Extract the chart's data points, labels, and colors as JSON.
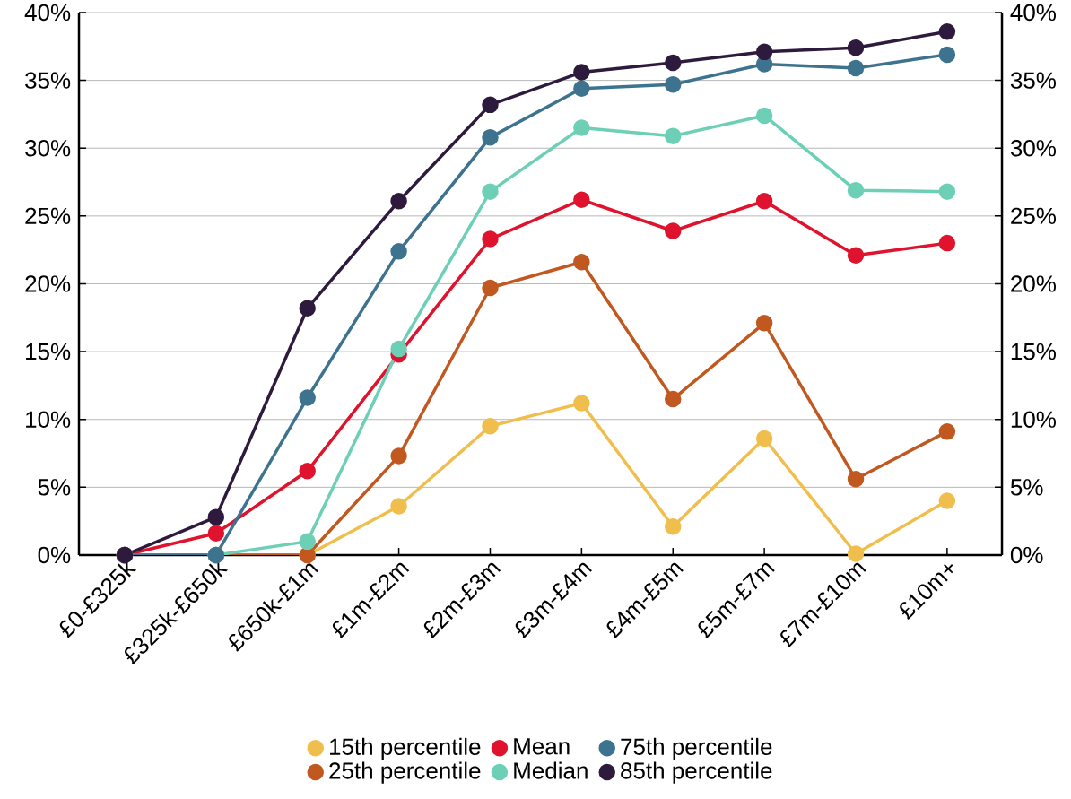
{
  "chart_data": {
    "type": "line",
    "categories": [
      "£0-£325k",
      "£325k-£650k",
      "£650k-£1m",
      "£1m-£2m",
      "£2m-£3m",
      "£3m-£4m",
      "£4m-£5m",
      "£5m-£7m",
      "£7m-£10m",
      "£10m+"
    ],
    "series": [
      {
        "name": "15th percentile",
        "color": "#f0be4c",
        "values": [
          0,
          0,
          0,
          3.6,
          9.5,
          11.2,
          2.1,
          8.6,
          0.1,
          4.0
        ]
      },
      {
        "name": "25th percentile",
        "color": "#c0581f",
        "values": [
          0,
          0,
          0,
          7.3,
          19.7,
          21.6,
          11.5,
          17.1,
          5.6,
          9.1
        ]
      },
      {
        "name": "Mean",
        "color": "#e0132e",
        "values": [
          0,
          1.6,
          6.2,
          14.8,
          23.3,
          26.2,
          23.9,
          26.1,
          22.1,
          23.0
        ]
      },
      {
        "name": "Median",
        "color": "#6ccfb6",
        "values": [
          0,
          0,
          1.0,
          15.2,
          26.8,
          31.5,
          30.9,
          32.4,
          26.9,
          26.8
        ]
      },
      {
        "name": "75th percentile",
        "color": "#3e738f",
        "values": [
          0,
          0,
          11.6,
          22.4,
          30.8,
          34.4,
          34.7,
          36.2,
          35.9,
          36.9
        ]
      },
      {
        "name": "85th percentile",
        "color": "#2e1a3d",
        "values": [
          0,
          2.8,
          18.2,
          26.1,
          33.2,
          35.6,
          36.3,
          37.1,
          37.4,
          38.6
        ]
      }
    ],
    "ylim": [
      0,
      40
    ],
    "yticks": [
      {
        "value": 0,
        "label": "0%"
      },
      {
        "value": 5,
        "label": "5%"
      },
      {
        "value": 10,
        "label": "10%"
      },
      {
        "value": 15,
        "label": "15%"
      },
      {
        "value": 20,
        "label": "20%"
      },
      {
        "value": 25,
        "label": "25%"
      },
      {
        "value": 30,
        "label": "30%"
      },
      {
        "value": 35,
        "label": "35%"
      },
      {
        "value": 40,
        "label": "40%"
      }
    ],
    "y2lim": [
      0,
      40
    ],
    "y2ticks": [
      {
        "value": 0,
        "label": "0%"
      },
      {
        "value": 5,
        "label": "5%"
      },
      {
        "value": 10,
        "label": "10%"
      },
      {
        "value": 15,
        "label": "15%"
      },
      {
        "value": 20,
        "label": "20%"
      },
      {
        "value": 25,
        "label": "25%"
      },
      {
        "value": 30,
        "label": "30%"
      },
      {
        "value": 35,
        "label": "35%"
      },
      {
        "value": 40,
        "label": "40%"
      }
    ],
    "grid": "y",
    "legend": "bottom",
    "marker": "circle",
    "line_style": "solid"
  }
}
